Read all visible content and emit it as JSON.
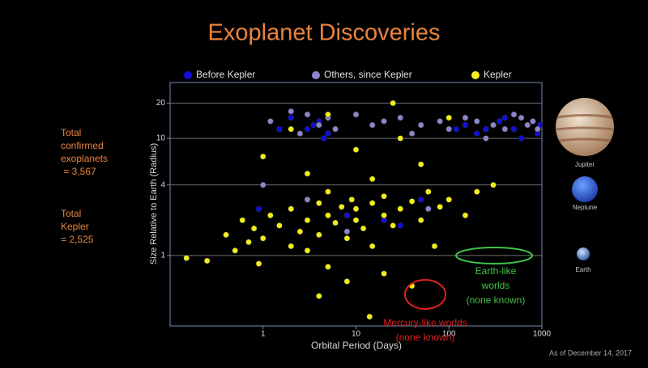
{
  "chart_data": {
    "type": "scatter",
    "title": "Exoplanet Discoveries",
    "xlabel": "Orbital Period (Days)",
    "ylabel": "Size Relative to Earth (Radius)",
    "xscale": "log",
    "yscale": "log",
    "xlim": [
      0.1,
      1000
    ],
    "ylim": [
      0.25,
      30
    ],
    "xticks": [
      1,
      10,
      100,
      1000
    ],
    "yticks": [
      1,
      4,
      10,
      20
    ],
    "grid": true,
    "legend": "top",
    "series": [
      {
        "name": "Before Kepler",
        "color": "#1010d8",
        "x": [
          3,
          4,
          200,
          300,
          500,
          800,
          2,
          5,
          400,
          600,
          150,
          3.5,
          250,
          700,
          900,
          350,
          1.5,
          4.5,
          120,
          0.9,
          50,
          20,
          8,
          30,
          950
        ],
        "values": [
          12,
          14,
          11,
          13,
          12,
          14,
          15,
          11,
          15,
          10,
          13,
          13,
          12,
          13,
          11,
          14,
          12,
          10,
          12,
          2.5,
          3,
          2,
          2.2,
          1.8,
          13
        ]
      },
      {
        "name": "Others, since Kepler",
        "color": "#8a86c9",
        "x": [
          1.2,
          2,
          3,
          4,
          5,
          10,
          20,
          50,
          100,
          150,
          200,
          300,
          400,
          500,
          600,
          700,
          800,
          900,
          2.5,
          6,
          30,
          80,
          40,
          250,
          15,
          3,
          10,
          60,
          8,
          1
        ],
        "values": [
          14,
          17,
          16,
          13,
          15,
          16,
          14,
          13,
          12,
          15,
          14,
          13,
          12,
          16,
          15,
          13,
          14,
          12,
          11,
          12,
          15,
          14,
          11,
          10,
          13,
          3,
          2,
          2.5,
          1.6,
          4
        ]
      },
      {
        "name": "Kepler",
        "color": "#f2ee1c",
        "x": [
          0.15,
          0.25,
          0.4,
          0.5,
          0.6,
          0.7,
          0.8,
          0.9,
          1,
          1.2,
          1.5,
          2,
          2,
          2.5,
          3,
          3,
          4,
          4,
          5,
          5,
          6,
          7,
          8,
          9,
          10,
          10,
          12,
          15,
          15,
          20,
          20,
          25,
          30,
          40,
          50,
          60,
          80,
          100,
          150,
          200,
          300,
          20,
          8,
          5,
          14,
          3,
          10,
          30,
          2,
          1,
          50,
          100,
          5,
          25,
          4,
          40,
          70,
          15
        ],
        "values": [
          0.95,
          0.9,
          1.5,
          1.1,
          2,
          1.3,
          1.7,
          0.85,
          1.4,
          2.2,
          1.8,
          1.2,
          2.5,
          1.6,
          2,
          1.1,
          2.8,
          1.5,
          2.2,
          3.5,
          1.9,
          2.6,
          1.4,
          3,
          2,
          2.5,
          1.7,
          2.8,
          1.2,
          2.2,
          3.2,
          1.8,
          2.5,
          2.9,
          2,
          3.5,
          2.6,
          3,
          2.2,
          3.5,
          4,
          0.7,
          0.6,
          0.8,
          0.3,
          5,
          8,
          10,
          12,
          7,
          6,
          15,
          16,
          20,
          0.45,
          0.55,
          1.2,
          4.5
        ]
      }
    ],
    "annotations": [
      {
        "lines": [
          "Earth-like",
          "worlds",
          "(none known)"
        ],
        "color": "#3fc24a"
      },
      {
        "lines": [
          "Mercury-like worlds",
          "(none known)"
        ],
        "color": "#e02020"
      }
    ]
  },
  "side_notes": [
    {
      "lines": [
        "Total",
        "confirmed",
        "exoplanets",
        " = 3,567"
      ]
    },
    {
      "lines": [
        "Total",
        "Kepler",
        "= 2,525"
      ]
    }
  ],
  "planets": [
    "Jupiter",
    "Neptune",
    "Earth"
  ],
  "footnote": "As of December 14, 2017"
}
